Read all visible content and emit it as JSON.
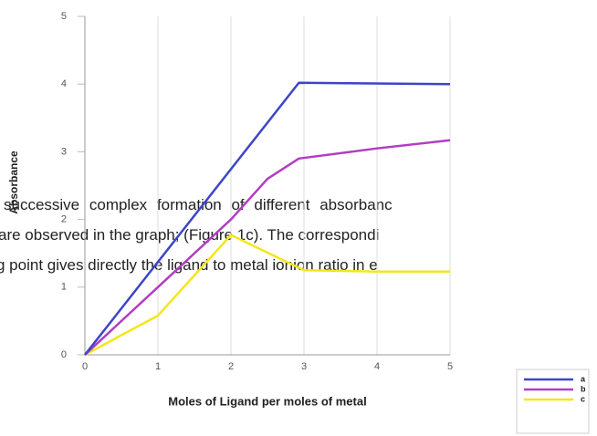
{
  "chart_data": {
    "type": "line",
    "x_label": "Moles of Ligand per moles of metal",
    "y_label": "Absorbance",
    "xlim": [
      0,
      5
    ],
    "xticks": [
      0,
      1,
      2,
      3,
      4,
      5
    ],
    "ylim": [
      0,
      5
    ],
    "yticks": [
      0,
      1,
      2,
      3,
      4,
      5
    ],
    "grid": true,
    "legend": "lower right",
    "series": [
      {
        "name": "a",
        "color": "#3c45c8",
        "x": [
          0,
          2.93,
          5
        ],
        "values": [
          0,
          4.02,
          4.0
        ]
      },
      {
        "name": "b",
        "color": "#b23dc2",
        "x": [
          0,
          1,
          2,
          2.5,
          2.93,
          4,
          5
        ],
        "values": [
          0,
          1.0,
          2.0,
          2.6,
          2.9,
          3.05,
          3.17
        ]
      },
      {
        "name": "c",
        "color": "#f5e61a",
        "x": [
          0,
          1,
          2,
          3,
          4,
          5
        ],
        "values": [
          0,
          0.58,
          1.77,
          1.25,
          1.23,
          1.23
        ]
      }
    ]
  },
  "paragraph": [
    "successive  complex  formation  of  different  absorbanc",
    "are observed in the graph; (Figure 1c). The correspondi",
    "g point gives directly the ligand to metal ionion ratio in e"
  ]
}
